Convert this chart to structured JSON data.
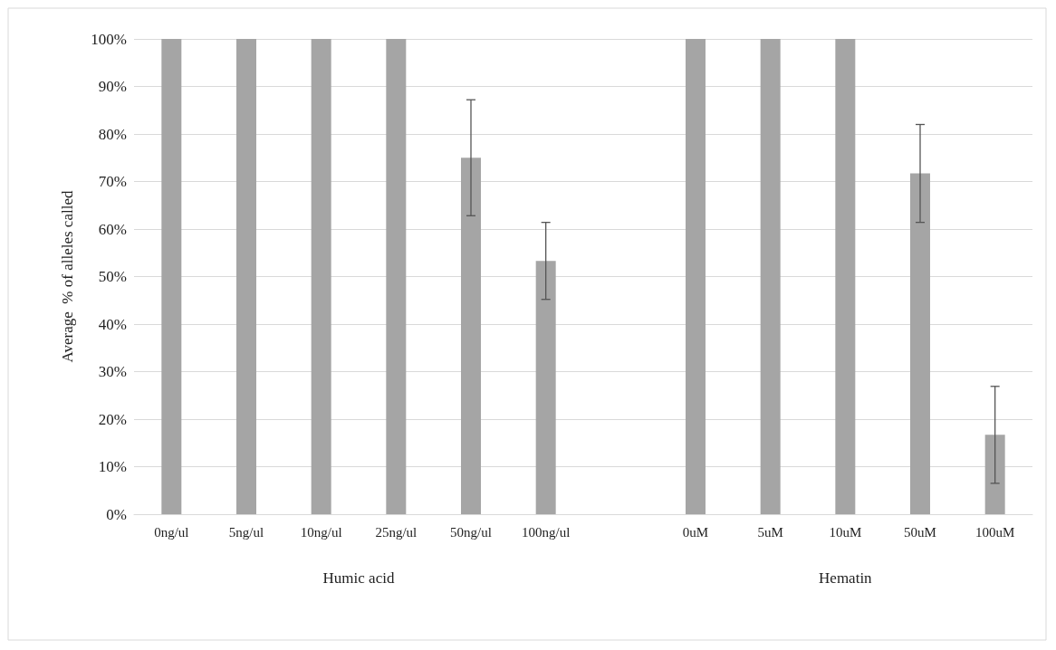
{
  "chart_data": {
    "type": "bar",
    "ylabel": "Average  % of alleles called",
    "categories": [
      "0ng/ul",
      "5ng/ul",
      "10ng/ul",
      "25ng/ul",
      "50ng/ul",
      "100ng/ul",
      null,
      "0uM",
      "5uM",
      "10uM",
      "50uM",
      "100uM"
    ],
    "values": [
      100,
      100,
      100,
      100,
      75,
      53.3,
      null,
      100,
      100,
      100,
      71.7,
      16.7
    ],
    "errors": [
      null,
      null,
      null,
      null,
      12.2,
      8.1,
      null,
      null,
      null,
      null,
      10.3,
      10.2
    ],
    "color": "#a5a5a5",
    "ylim": [
      0,
      100
    ],
    "yticks": [
      {
        "value": 0,
        "label": "0%"
      },
      {
        "value": 10,
        "label": "10%"
      },
      {
        "value": 20,
        "label": "20%"
      },
      {
        "value": 30,
        "label": "30%"
      },
      {
        "value": 40,
        "label": "40%"
      },
      {
        "value": 50,
        "label": "50%"
      },
      {
        "value": 60,
        "label": "60%"
      },
      {
        "value": 70,
        "label": "70%"
      },
      {
        "value": 80,
        "label": "80%"
      },
      {
        "value": 90,
        "label": "90%"
      },
      {
        "value": 100,
        "label": "100%"
      }
    ],
    "annotations": [
      "Humic acid",
      "Hematin"
    ],
    "grid": "y"
  }
}
